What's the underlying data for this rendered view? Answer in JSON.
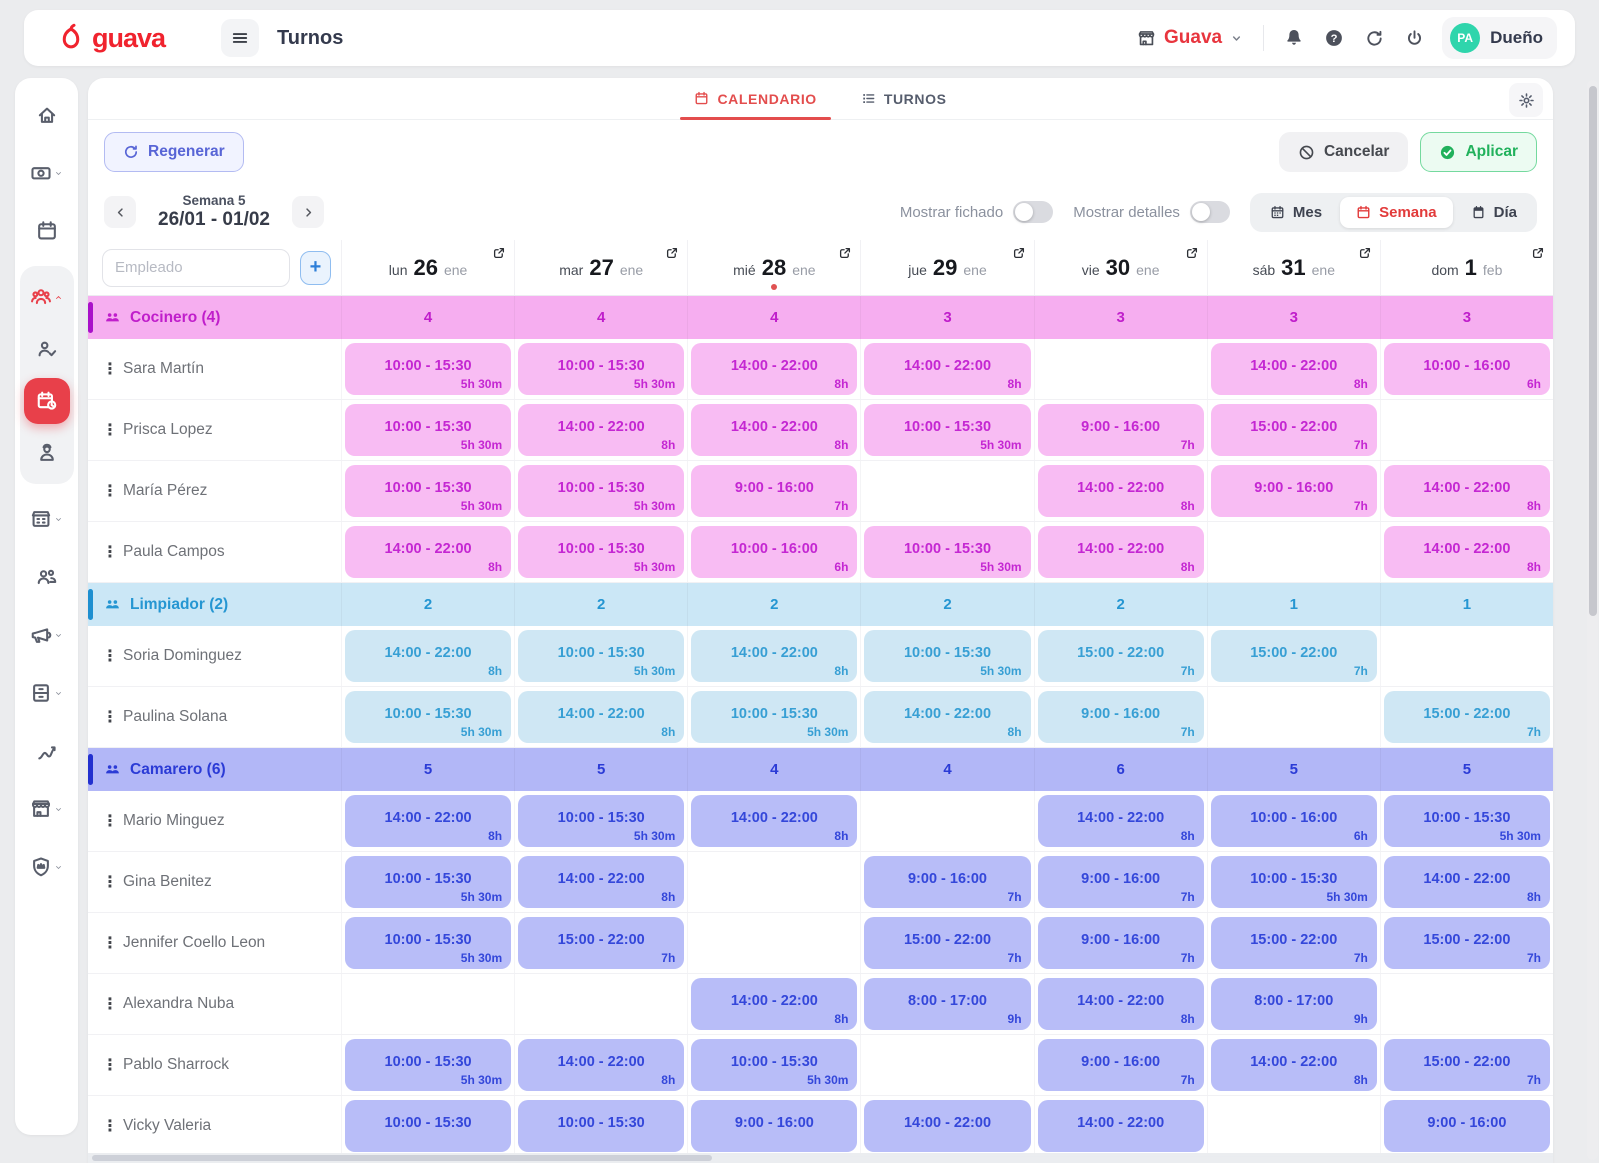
{
  "header": {
    "brand": "guava",
    "title": "Turnos",
    "store_name": "Guava",
    "user_initials": "PA",
    "user_role": "Dueño"
  },
  "tabs": {
    "calendario": "CALENDARIO",
    "turnos": "TURNOS"
  },
  "toolbar": {
    "regenerate_label": "Regenerar",
    "cancel_label": "Cancelar",
    "apply_label": "Aplicar"
  },
  "weeknav": {
    "week_name": "Semana 5",
    "week_range": "26/01 - 01/02",
    "toggle_fichado_label": "Mostrar fichado",
    "toggle_detalles_label": "Mostrar detalles",
    "view_mes": "Mes",
    "view_semana": "Semana",
    "view_dia": "Día",
    "active_view": "semana",
    "fichado_on": false,
    "detalles_on": false
  },
  "colors": {
    "brand_red": "#f0232e",
    "store_red": "#e8353e",
    "tab_active_red": "#e34d4d",
    "today_dot": "#e05252",
    "avatar_teal": "#2fd5ac",
    "regenerate_indigo": "#5865d6",
    "apply_green": "#21b15c",
    "sidebar_active_red": "#e8404a"
  },
  "grid": {
    "employee_placeholder": "Empleado",
    "add_button_label": "+",
    "days": [
      {
        "dow": "lun",
        "num": "26",
        "mon": "ene",
        "today": false
      },
      {
        "dow": "mar",
        "num": "27",
        "mon": "ene",
        "today": false
      },
      {
        "dow": "mié",
        "num": "28",
        "mon": "ene",
        "today": true
      },
      {
        "dow": "jue",
        "num": "29",
        "mon": "ene",
        "today": false
      },
      {
        "dow": "vie",
        "num": "30",
        "mon": "ene",
        "today": false
      },
      {
        "dow": "sáb",
        "num": "31",
        "mon": "ene",
        "today": false
      },
      {
        "dow": "dom",
        "num": "1",
        "mon": "feb",
        "today": false
      }
    ],
    "groups": [
      {
        "name": "Cocinero (4)",
        "counts": [
          "4",
          "4",
          "4",
          "3",
          "3",
          "3",
          "3"
        ],
        "colors": {
          "header_bg": "#f6aef0",
          "stripe": "#a911c9",
          "text": "#c01ecb",
          "cell_bg": "#f8bcf3",
          "cell_text": "#c427d2"
        },
        "employees": [
          {
            "name": "Sara Martín",
            "shifts": [
              {
                "t": "10:00 - 15:30",
                "d": "5h 30m"
              },
              {
                "t": "10:00 - 15:30",
                "d": "5h 30m"
              },
              {
                "t": "14:00 - 22:00",
                "d": "8h"
              },
              {
                "t": "14:00 - 22:00",
                "d": "8h"
              },
              null,
              {
                "t": "14:00 - 22:00",
                "d": "8h"
              },
              {
                "t": "10:00 - 16:00",
                "d": "6h"
              }
            ]
          },
          {
            "name": "Prisca Lopez",
            "shifts": [
              {
                "t": "10:00 - 15:30",
                "d": "5h 30m"
              },
              {
                "t": "14:00 - 22:00",
                "d": "8h"
              },
              {
                "t": "14:00 - 22:00",
                "d": "8h"
              },
              {
                "t": "10:00 - 15:30",
                "d": "5h 30m"
              },
              {
                "t": "9:00 - 16:00",
                "d": "7h"
              },
              {
                "t": "15:00 - 22:00",
                "d": "7h"
              },
              null
            ]
          },
          {
            "name": "María Pérez",
            "shifts": [
              {
                "t": "10:00 - 15:30",
                "d": "5h 30m"
              },
              {
                "t": "10:00 - 15:30",
                "d": "5h 30m"
              },
              {
                "t": "9:00 - 16:00",
                "d": "7h"
              },
              null,
              {
                "t": "14:00 - 22:00",
                "d": "8h"
              },
              {
                "t": "9:00 - 16:00",
                "d": "7h"
              },
              {
                "t": "14:00 - 22:00",
                "d": "8h"
              }
            ]
          },
          {
            "name": "Paula Campos",
            "shifts": [
              {
                "t": "14:00 - 22:00",
                "d": "8h"
              },
              {
                "t": "10:00 - 15:30",
                "d": "5h 30m"
              },
              {
                "t": "10:00 - 16:00",
                "d": "6h"
              },
              {
                "t": "10:00 - 15:30",
                "d": "5h 30m"
              },
              {
                "t": "14:00 - 22:00",
                "d": "8h"
              },
              null,
              {
                "t": "14:00 - 22:00",
                "d": "8h"
              }
            ]
          }
        ]
      },
      {
        "name": "Limpiador (2)",
        "counts": [
          "2",
          "2",
          "2",
          "2",
          "2",
          "1",
          "1"
        ],
        "colors": {
          "header_bg": "#cbe7f6",
          "stripe": "#1e8fd0",
          "text": "#2596d2",
          "cell_bg": "#cfe7f4",
          "cell_text": "#379fd4"
        },
        "employees": [
          {
            "name": "Soria Dominguez",
            "shifts": [
              {
                "t": "14:00 - 22:00",
                "d": "8h"
              },
              {
                "t": "10:00 - 15:30",
                "d": "5h 30m"
              },
              {
                "t": "14:00 - 22:00",
                "d": "8h"
              },
              {
                "t": "10:00 - 15:30",
                "d": "5h 30m"
              },
              {
                "t": "15:00 - 22:00",
                "d": "7h"
              },
              {
                "t": "15:00 - 22:00",
                "d": "7h"
              },
              null
            ]
          },
          {
            "name": "Paulina Solana",
            "shifts": [
              {
                "t": "10:00 - 15:30",
                "d": "5h 30m"
              },
              {
                "t": "14:00 - 22:00",
                "d": "8h"
              },
              {
                "t": "10:00 - 15:30",
                "d": "5h 30m"
              },
              {
                "t": "14:00 - 22:00",
                "d": "8h"
              },
              {
                "t": "9:00 - 16:00",
                "d": "7h"
              },
              null,
              {
                "t": "15:00 - 22:00",
                "d": "7h"
              }
            ]
          }
        ]
      },
      {
        "name": "Camarero (6)",
        "counts": [
          "5",
          "5",
          "4",
          "4",
          "6",
          "5",
          "5"
        ],
        "colors": {
          "header_bg": "#b2b7f7",
          "stripe": "#2230cf",
          "text": "#2b3bd6",
          "cell_bg": "#b8bdf8",
          "cell_text": "#3447da"
        },
        "employees": [
          {
            "name": "Mario Minguez",
            "shifts": [
              {
                "t": "14:00 - 22:00",
                "d": "8h"
              },
              {
                "t": "10:00 - 15:30",
                "d": "5h 30m"
              },
              {
                "t": "14:00 - 22:00",
                "d": "8h"
              },
              null,
              {
                "t": "14:00 - 22:00",
                "d": "8h"
              },
              {
                "t": "10:00 - 16:00",
                "d": "6h"
              },
              {
                "t": "10:00 - 15:30",
                "d": "5h 30m"
              }
            ]
          },
          {
            "name": "Gina Benitez",
            "shifts": [
              {
                "t": "10:00 - 15:30",
                "d": "5h 30m"
              },
              {
                "t": "14:00 - 22:00",
                "d": "8h"
              },
              null,
              {
                "t": "9:00 - 16:00",
                "d": "7h"
              },
              {
                "t": "9:00 - 16:00",
                "d": "7h"
              },
              {
                "t": "10:00 - 15:30",
                "d": "5h 30m"
              },
              {
                "t": "14:00 - 22:00",
                "d": "8h"
              }
            ]
          },
          {
            "name": "Jennifer Coello Leon",
            "shifts": [
              {
                "t": "10:00 - 15:30",
                "d": "5h 30m"
              },
              {
                "t": "15:00 - 22:00",
                "d": "7h"
              },
              null,
              {
                "t": "15:00 - 22:00",
                "d": "7h"
              },
              {
                "t": "9:00 - 16:00",
                "d": "7h"
              },
              {
                "t": "15:00 - 22:00",
                "d": "7h"
              },
              {
                "t": "15:00 - 22:00",
                "d": "7h"
              }
            ]
          },
          {
            "name": "Alexandra Nuba",
            "shifts": [
              null,
              null,
              {
                "t": "14:00 - 22:00",
                "d": "8h"
              },
              {
                "t": "8:00 - 17:00",
                "d": "9h"
              },
              {
                "t": "14:00 - 22:00",
                "d": "8h"
              },
              {
                "t": "8:00 - 17:00",
                "d": "9h"
              },
              null
            ]
          },
          {
            "name": "Pablo Sharrock",
            "shifts": [
              {
                "t": "10:00 - 15:30",
                "d": "5h 30m"
              },
              {
                "t": "14:00 - 22:00",
                "d": "8h"
              },
              {
                "t": "10:00 - 15:30",
                "d": "5h 30m"
              },
              null,
              {
                "t": "9:00 - 16:00",
                "d": "7h"
              },
              {
                "t": "14:00 - 22:00",
                "d": "8h"
              },
              {
                "t": "15:00 - 22:00",
                "d": "7h"
              }
            ]
          },
          {
            "name": "Vicky Valeria",
            "shifts": [
              {
                "t": "10:00 - 15:30",
                "d": ""
              },
              {
                "t": "10:00 - 15:30",
                "d": ""
              },
              {
                "t": "9:00 - 16:00",
                "d": ""
              },
              {
                "t": "14:00 - 22:00",
                "d": ""
              },
              {
                "t": "14:00 - 22:00",
                "d": ""
              },
              null,
              {
                "t": "9:00 - 16:00",
                "d": ""
              }
            ]
          }
        ]
      }
    ]
  },
  "sidebar": {
    "top_items": [
      {
        "icon": "home-icon",
        "chevron": false
      },
      {
        "icon": "payments-icon",
        "chevron": true
      },
      {
        "icon": "calendar-icon",
        "chevron": false
      }
    ],
    "team_section": [
      {
        "icon": "team-icon",
        "chevron": "up",
        "red": true
      },
      {
        "icon": "people-check-icon",
        "chevron": false
      },
      {
        "icon": "schedule-icon",
        "active": true
      },
      {
        "icon": "concierge-icon",
        "chevron": false
      }
    ],
    "bottom_items": [
      {
        "icon": "building-icon",
        "chevron": true
      },
      {
        "icon": "users-icon",
        "chevron": false
      },
      {
        "icon": "megaphone-icon",
        "chevron": true
      },
      {
        "icon": "cabinet-icon",
        "chevron": true
      },
      {
        "icon": "analytics-icon",
        "chevron": false
      },
      {
        "icon": "store-icon",
        "chevron": true
      },
      {
        "icon": "shield-icon",
        "chevron": true
      }
    ]
  }
}
